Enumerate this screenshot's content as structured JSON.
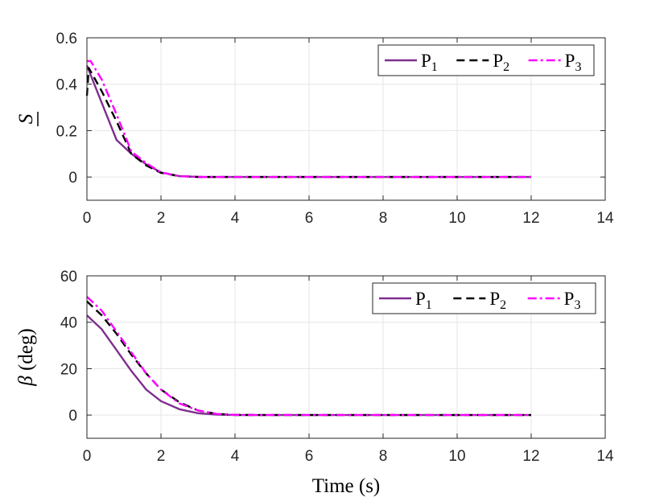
{
  "chart_data": [
    {
      "type": "line",
      "ylabel": "S",
      "ylabel_underline": true,
      "xlim": [
        0,
        14
      ],
      "ylim": [
        -0.1,
        0.6
      ],
      "xticks": [
        0,
        2,
        4,
        6,
        8,
        10,
        12,
        14
      ],
      "yticks": [
        0,
        0.2,
        0.4,
        0.6
      ],
      "ytick_labels": [
        "0",
        "0.2",
        "0.4",
        "0.6"
      ],
      "grid": true,
      "legend": {
        "placement": "top-right",
        "orientation": "horizontal"
      },
      "series": [
        {
          "name": "P",
          "subscript": "1",
          "color": "#7e2f8e",
          "dash": "solid",
          "x": [
            0,
            0.4,
            0.8,
            1.2,
            1.6,
            2.0,
            2.5,
            3.0,
            4.0,
            6.0,
            8.0,
            10.0,
            12.0
          ],
          "y": [
            0.48,
            0.32,
            0.16,
            0.1,
            0.055,
            0.02,
            0.004,
            0.0005,
            0,
            0,
            0,
            0,
            0
          ]
        },
        {
          "name": "P",
          "subscript": "2",
          "color": "#000000",
          "dash": "dashed",
          "x": [
            0,
            0.05,
            0.4,
            0.8,
            1.2,
            1.6,
            2.0,
            2.5,
            3.0,
            4.0,
            6.0,
            8.0,
            10.0,
            12.0
          ],
          "y": [
            0.35,
            0.47,
            0.37,
            0.24,
            0.1,
            0.05,
            0.018,
            0.004,
            0.0005,
            0,
            0,
            0,
            0,
            0
          ]
        },
        {
          "name": "P",
          "subscript": "3",
          "color": "#ff00ff",
          "dash": "dashdot",
          "x": [
            0,
            0.1,
            0.4,
            0.8,
            1.2,
            1.6,
            2.0,
            2.5,
            3.0,
            4.0,
            6.0,
            8.0,
            10.0,
            12.0
          ],
          "y": [
            0.5,
            0.5,
            0.42,
            0.27,
            0.11,
            0.06,
            0.02,
            0.004,
            0.0005,
            0,
            0,
            0,
            0,
            0
          ]
        }
      ]
    },
    {
      "type": "line",
      "ylabel": "β (deg)",
      "xlabel": "Time (s)",
      "xlim": [
        0,
        14
      ],
      "ylim": [
        -10,
        60
      ],
      "xticks": [
        0,
        2,
        4,
        6,
        8,
        10,
        12,
        14
      ],
      "yticks": [
        0,
        20,
        40,
        60
      ],
      "ytick_labels": [
        "0",
        "20",
        "40",
        "60"
      ],
      "grid": true,
      "legend": {
        "placement": "top-right",
        "orientation": "horizontal"
      },
      "series": [
        {
          "name": "P",
          "subscript": "1",
          "color": "#7e2f8e",
          "dash": "solid",
          "x": [
            0,
            0.4,
            0.8,
            1.2,
            1.6,
            2.0,
            2.5,
            3.0,
            3.5,
            4.0,
            5.0,
            6.0,
            8.0,
            10.0,
            12.0
          ],
          "y": [
            43,
            37,
            28,
            19,
            11,
            6,
            2.5,
            0.8,
            0.2,
            0,
            0,
            0,
            0,
            0,
            0
          ]
        },
        {
          "name": "P",
          "subscript": "2",
          "color": "#000000",
          "dash": "dashed",
          "x": [
            0,
            0.4,
            0.8,
            1.2,
            1.6,
            2.0,
            2.5,
            3.0,
            3.5,
            4.0,
            5.0,
            6.0,
            8.0,
            10.0,
            12.0
          ],
          "y": [
            49,
            43,
            35,
            26,
            18,
            11,
            5.5,
            2,
            0.5,
            0.1,
            0,
            0,
            0,
            0,
            0
          ]
        },
        {
          "name": "P",
          "subscript": "3",
          "color": "#ff00ff",
          "dash": "dashdot",
          "x": [
            0,
            0.4,
            0.8,
            1.2,
            1.6,
            2.0,
            2.5,
            3.0,
            3.5,
            4.0,
            5.0,
            6.0,
            8.0,
            10.0,
            12.0
          ],
          "y": [
            51,
            45,
            36,
            27,
            18,
            11,
            5,
            2,
            0.5,
            0.1,
            0,
            0,
            0,
            0,
            0
          ]
        }
      ]
    }
  ]
}
